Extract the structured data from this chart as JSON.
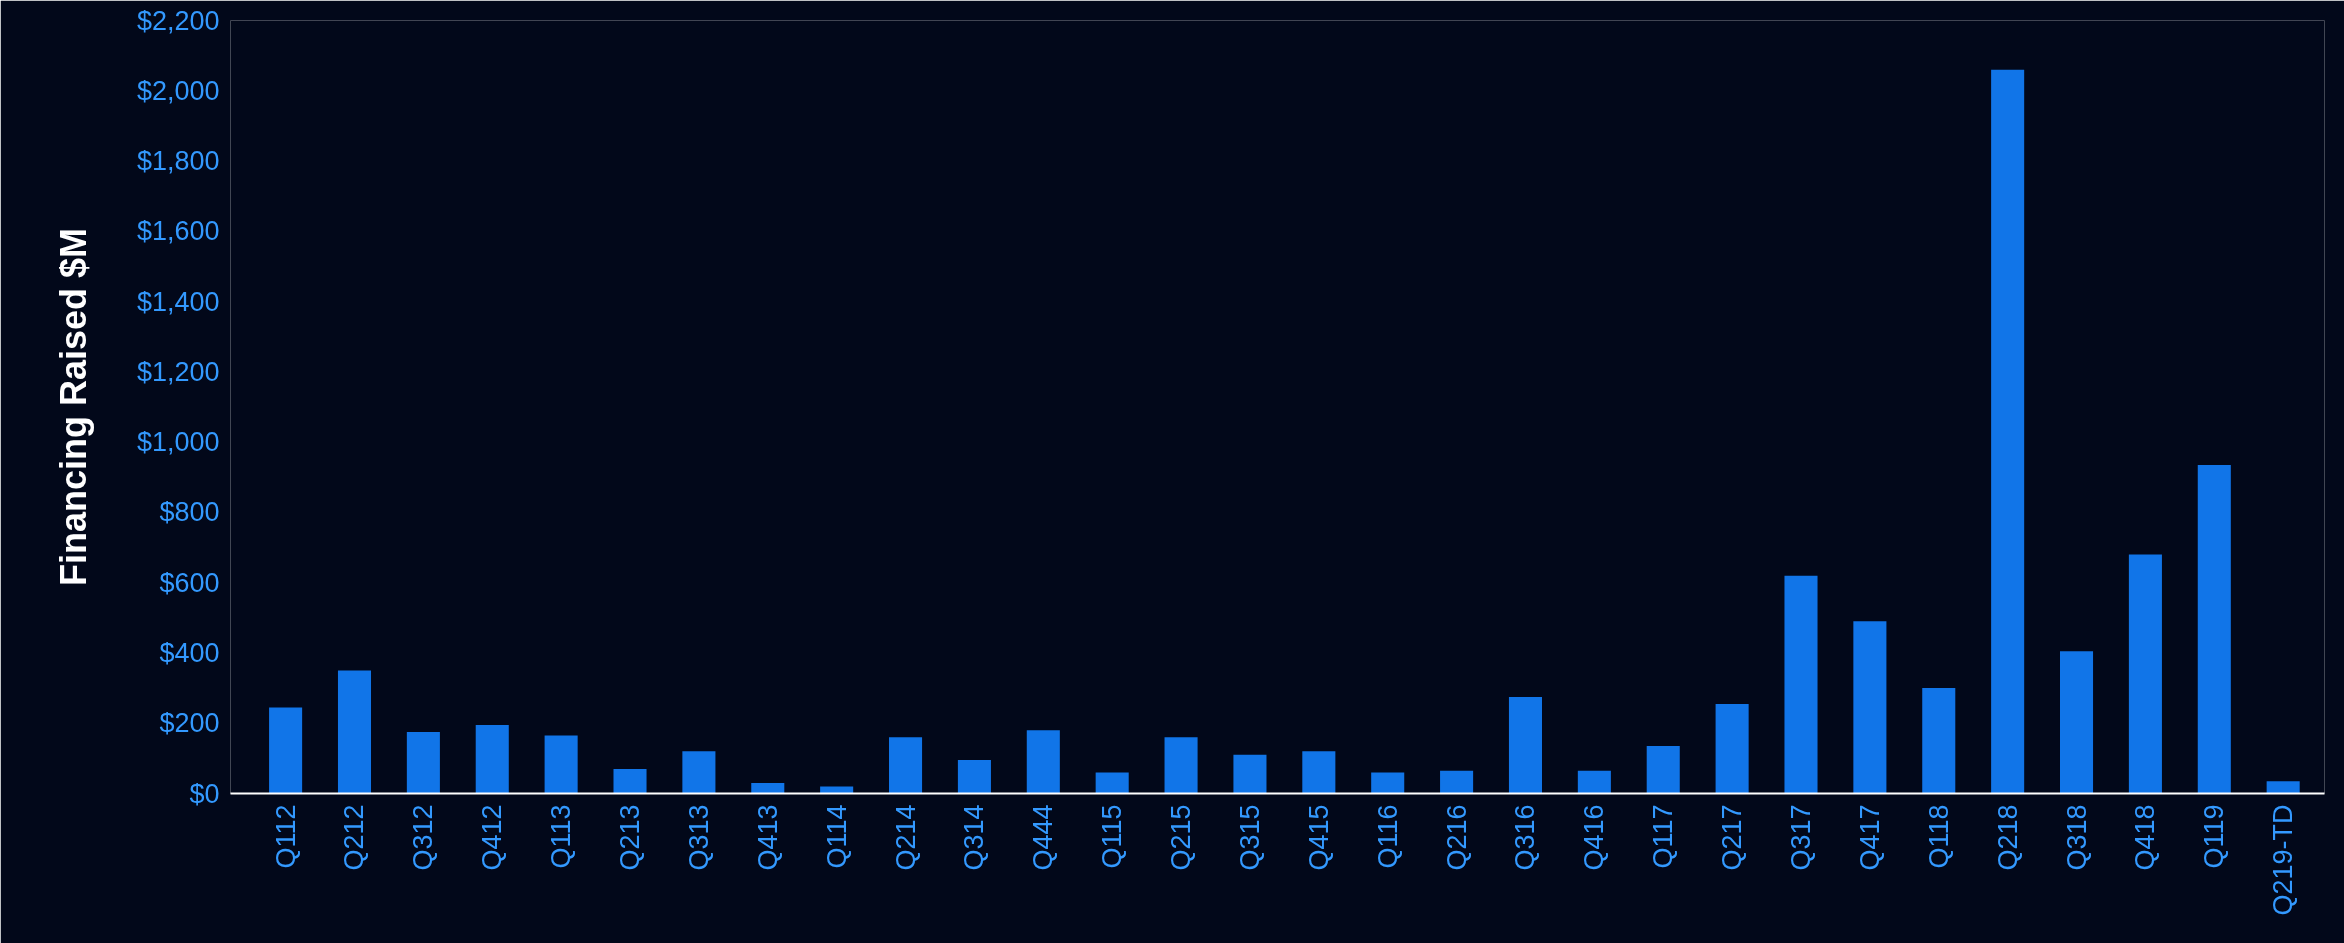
{
  "chart_data": {
    "type": "bar",
    "ylabel": "Financing Raised $M",
    "categories": [
      "Q112",
      "Q212",
      "Q312",
      "Q412",
      "Q113",
      "Q213",
      "Q313",
      "Q413",
      "Q114",
      "Q214",
      "Q314",
      "Q444",
      "Q115",
      "Q215",
      "Q315",
      "Q415",
      "Q116",
      "Q216",
      "Q316",
      "Q416",
      "Q117",
      "Q217",
      "Q317",
      "Q417",
      "Q118",
      "Q218",
      "Q318",
      "Q418",
      "Q119",
      "Q219-TD"
    ],
    "values": [
      245,
      350,
      175,
      195,
      165,
      70,
      120,
      30,
      20,
      160,
      95,
      180,
      60,
      160,
      110,
      120,
      60,
      65,
      275,
      65,
      135,
      255,
      620,
      490,
      300,
      2060,
      405,
      680,
      935,
      35
    ],
    "color": "#1175e8",
    "ylim": [
      0,
      2200
    ],
    "yticks": [
      {
        "value": 0,
        "label": "$0"
      },
      {
        "value": 200,
        "label": "$200"
      },
      {
        "value": 400,
        "label": "$400"
      },
      {
        "value": 600,
        "label": "$600"
      },
      {
        "value": 800,
        "label": "$800"
      },
      {
        "value": 1000,
        "label": "$1,000"
      },
      {
        "value": 1200,
        "label": "$1,200"
      },
      {
        "value": 1400,
        "label": "$1,400"
      },
      {
        "value": 1600,
        "label": "$1,600"
      },
      {
        "value": 1800,
        "label": "$1,800"
      },
      {
        "value": 2000,
        "label": "$2,000"
      },
      {
        "value": 2200,
        "label": "$2,200"
      }
    ],
    "grid": false
  }
}
